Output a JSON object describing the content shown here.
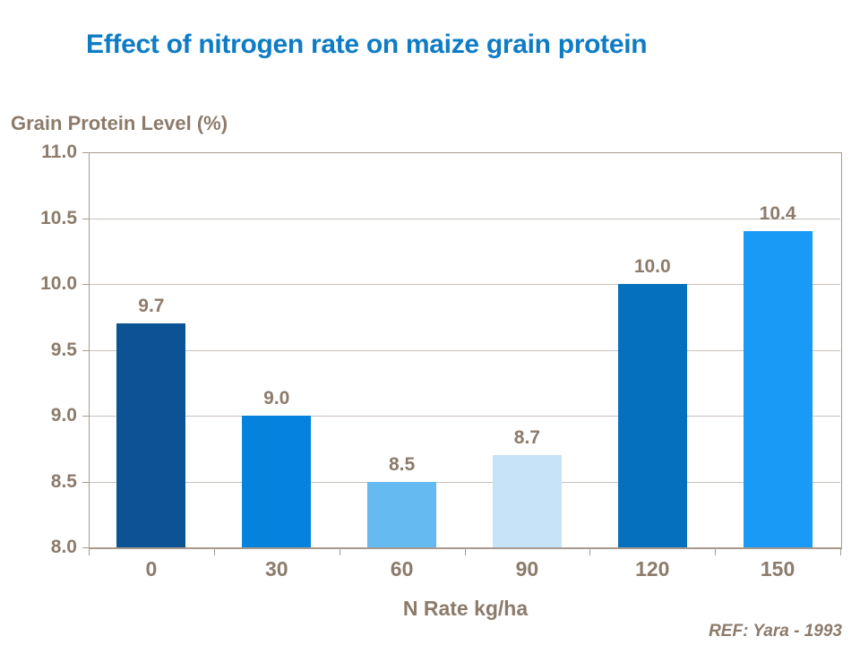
{
  "slide": {
    "reference": "REF: Yara - 1993"
  },
  "chart_data": {
    "type": "bar",
    "title": "Effect of nitrogen rate on maize grain protein",
    "categories": [
      "0",
      "30",
      "60",
      "90",
      "120",
      "150"
    ],
    "values": [
      9.7,
      9.0,
      8.5,
      8.7,
      10.0,
      10.4
    ],
    "data_labels": [
      "9.7",
      "9.0",
      "8.5",
      "8.7",
      "10.0",
      "10.4"
    ],
    "bar_colors": [
      "#0B5394",
      "#0482DE",
      "#66BAF2",
      "#C7E3F8",
      "#0470BE",
      "#189AF6"
    ],
    "xlabel": "N Rate kg/ha",
    "ylabel": "Grain Protein Level (%)",
    "ylim": [
      8.0,
      11.0
    ],
    "yticks": [
      11.0,
      10.5,
      10.0,
      9.5,
      9.0,
      8.5,
      8.0
    ],
    "ytick_labels": [
      "11.0",
      "10.5",
      "10.0",
      "9.5",
      "9.0",
      "8.5",
      "8.0"
    ],
    "grid": true,
    "legend": "none"
  },
  "colors": {
    "background": "#FFFFFF",
    "title_text": "#0E7CC4",
    "axis_text": "#8C7B6B",
    "axis_line": "#A79A8D",
    "gridline": "#C9C1BA"
  }
}
